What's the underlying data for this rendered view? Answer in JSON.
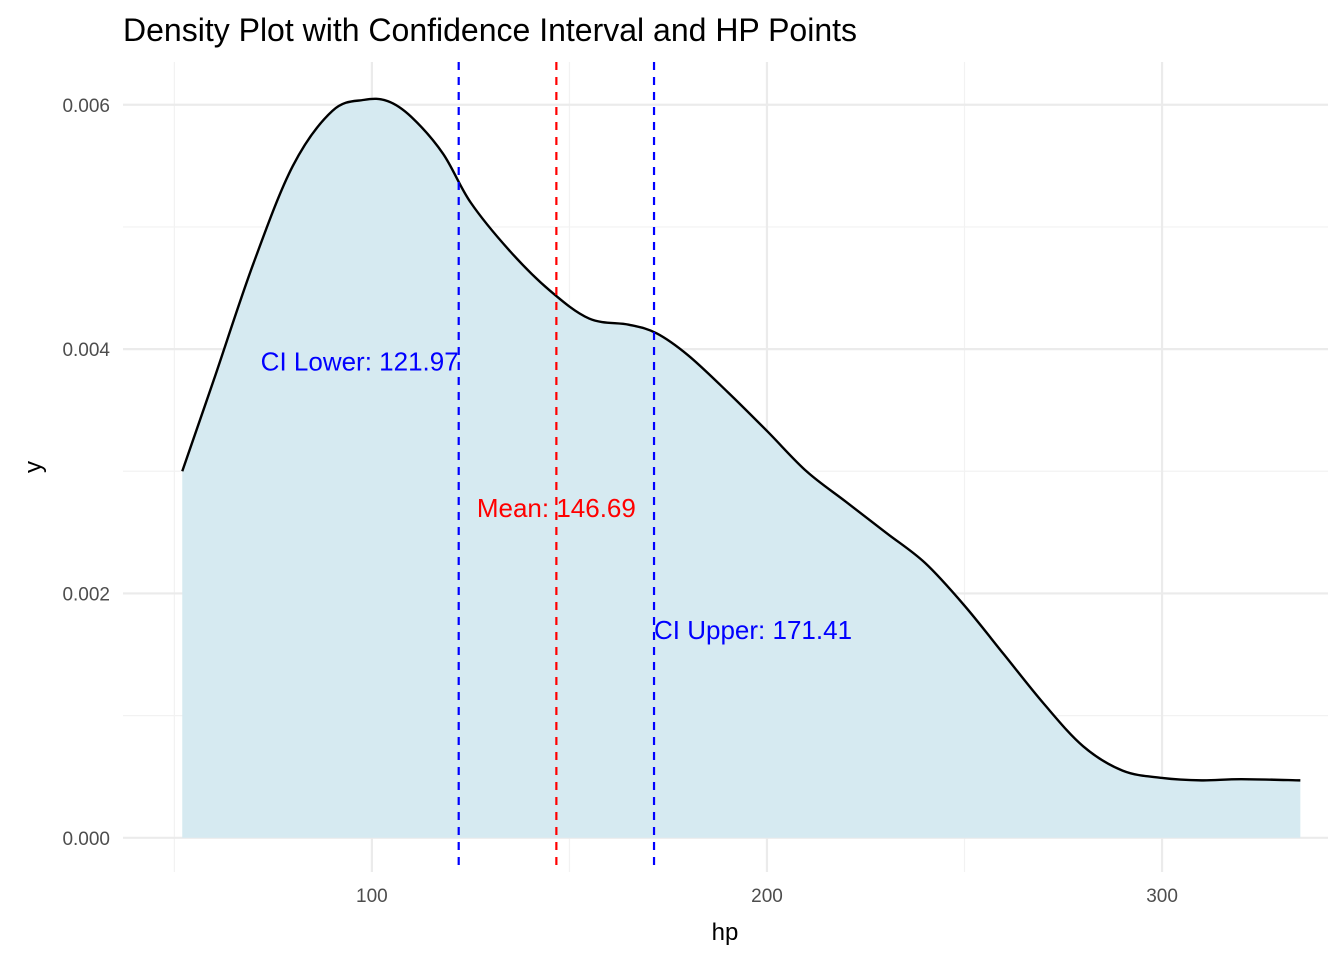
{
  "chart_data": {
    "type": "area",
    "title": "Density Plot with Confidence Interval and HP Points",
    "xlabel": "hp",
    "ylabel": "y",
    "xlim": [
      37,
      342
    ],
    "ylim": [
      -0.00028,
      0.00635
    ],
    "x_ticks": [
      100,
      200,
      300
    ],
    "x_tick_labels": [
      "100",
      "200",
      "300"
    ],
    "y_ticks": [
      0.0,
      0.002,
      0.004,
      0.006
    ],
    "y_tick_labels": [
      "0.000",
      "0.002",
      "0.004",
      "0.006"
    ],
    "grid": true,
    "legend": "none",
    "series": [
      {
        "x": [
          52,
          60,
          70,
          80,
          90,
          98,
          104,
          110,
          118,
          125,
          135,
          145,
          155,
          165,
          172,
          180,
          190,
          200,
          210,
          220,
          230,
          240,
          250,
          260,
          270,
          280,
          290,
          300,
          310,
          320,
          335
        ],
        "y": [
          0.003,
          0.00375,
          0.0047,
          0.0055,
          0.00595,
          0.00604,
          0.00603,
          0.0059,
          0.0056,
          0.0052,
          0.0048,
          0.00448,
          0.00425,
          0.0042,
          0.00413,
          0.00395,
          0.00365,
          0.00333,
          0.003,
          0.00275,
          0.0025,
          0.00225,
          0.0019,
          0.0015,
          0.0011,
          0.00075,
          0.00055,
          0.00049,
          0.00047,
          0.00048,
          0.00047
        ],
        "fill": "#d6eaf1",
        "line_color": "#000000"
      }
    ],
    "vlines": [
      {
        "x": 121.97,
        "color": "#0000ff",
        "style": "dashed"
      },
      {
        "x": 146.69,
        "color": "#ff0000",
        "style": "dashed"
      },
      {
        "x": 171.41,
        "color": "#0000ff",
        "style": "dashed"
      }
    ],
    "annotations": [
      {
        "text": "CI Lower: 121.97",
        "x": 121.97,
        "y": 0.0039,
        "color": "#0000ff",
        "anchor": "end"
      },
      {
        "text": "Mean: 146.69",
        "x": 146.69,
        "y": 0.0027,
        "color": "#ff0000",
        "anchor": "middle"
      },
      {
        "text": "CI Upper: 171.41",
        "x": 171.41,
        "y": 0.0017,
        "color": "#0000ff",
        "anchor": "start"
      }
    ]
  }
}
